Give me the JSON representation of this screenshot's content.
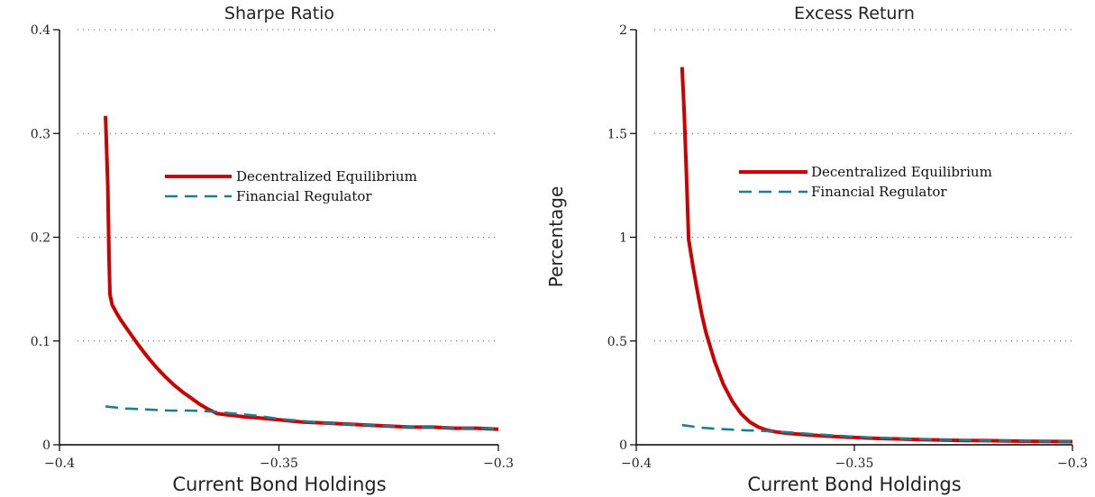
{
  "chart_data": [
    {
      "type": "line",
      "title": "Sharpe Ratio",
      "xlabel": "Current Bond Holdings",
      "ylabel": "",
      "xlim": [
        -0.4,
        -0.3
      ],
      "ylim": [
        0,
        0.4
      ],
      "xticks": [
        -0.4,
        -0.35,
        -0.3
      ],
      "xtick_labels": [
        "−0.4",
        "−0.35",
        "−0.3"
      ],
      "yticks": [
        0,
        0.1,
        0.2,
        0.3,
        0.4
      ],
      "ytick_labels": [
        "0",
        "0.1",
        "0.2",
        "0.3",
        "0.4"
      ],
      "grid": "horizontal dotted",
      "legend_position": "right",
      "series": [
        {
          "name": "Decentralized Equilibrium",
          "style": "solid",
          "color": "#cc0000",
          "x": [
            -0.3895,
            -0.389,
            -0.3887,
            -0.3885,
            -0.388,
            -0.387,
            -0.386,
            -0.384,
            -0.382,
            -0.38,
            -0.378,
            -0.376,
            -0.374,
            -0.372,
            -0.37,
            -0.368,
            -0.366,
            -0.364,
            -0.362,
            -0.36,
            -0.358,
            -0.355,
            -0.35,
            -0.345,
            -0.34,
            -0.335,
            -0.33,
            -0.325,
            -0.32,
            -0.315,
            -0.31,
            -0.305,
            -0.3
          ],
          "y": [
            0.317,
            0.25,
            0.18,
            0.145,
            0.135,
            0.127,
            0.12,
            0.108,
            0.096,
            0.085,
            0.075,
            0.066,
            0.058,
            0.051,
            0.045,
            0.039,
            0.034,
            0.03,
            0.029,
            0.028,
            0.027,
            0.026,
            0.024,
            0.022,
            0.021,
            0.02,
            0.019,
            0.018,
            0.017,
            0.017,
            0.016,
            0.016,
            0.015
          ]
        },
        {
          "name": "Financial Regulator",
          "style": "dashed",
          "color": "#1a7f8f",
          "x": [
            -0.3895,
            -0.385,
            -0.38,
            -0.375,
            -0.37,
            -0.365,
            -0.36,
            -0.355,
            -0.35,
            -0.345,
            -0.34,
            -0.335,
            -0.33,
            -0.325,
            -0.32,
            -0.315,
            -0.31,
            -0.305,
            -0.3
          ],
          "y": [
            0.037,
            0.035,
            0.034,
            0.033,
            0.033,
            0.032,
            0.03,
            0.028,
            0.025,
            0.023,
            0.021,
            0.02,
            0.019,
            0.018,
            0.017,
            0.017,
            0.016,
            0.016,
            0.015
          ]
        }
      ]
    },
    {
      "type": "line",
      "title": "Excess Return",
      "xlabel": "Current Bond Holdings",
      "ylabel": "Percentage",
      "xlim": [
        -0.4,
        -0.3
      ],
      "ylim": [
        0,
        2
      ],
      "xticks": [
        -0.4,
        -0.35,
        -0.3
      ],
      "xtick_labels": [
        "−0.4",
        "−0.35",
        "−0.3"
      ],
      "yticks": [
        0,
        0.5,
        1,
        1.5,
        2
      ],
      "ytick_labels": [
        "0",
        "0.5",
        "1",
        "1.5",
        "2"
      ],
      "grid": "horizontal dotted",
      "legend_position": "right",
      "series": [
        {
          "name": "Decentralized Equilibrium",
          "style": "solid",
          "color": "#cc0000",
          "x": [
            -0.3895,
            -0.389,
            -0.3885,
            -0.388,
            -0.387,
            -0.386,
            -0.385,
            -0.384,
            -0.382,
            -0.38,
            -0.378,
            -0.376,
            -0.374,
            -0.372,
            -0.37,
            -0.368,
            -0.366,
            -0.364,
            -0.362,
            -0.36,
            -0.355,
            -0.35,
            -0.345,
            -0.34,
            -0.335,
            -0.33,
            -0.325,
            -0.32,
            -0.31,
            -0.3
          ],
          "y": [
            1.82,
            1.6,
            1.3,
            0.99,
            0.86,
            0.74,
            0.63,
            0.54,
            0.4,
            0.29,
            0.21,
            0.15,
            0.11,
            0.085,
            0.07,
            0.062,
            0.057,
            0.053,
            0.05,
            0.047,
            0.04,
            0.035,
            0.031,
            0.028,
            0.025,
            0.023,
            0.021,
            0.02,
            0.017,
            0.015
          ]
        },
        {
          "name": "Financial Regulator",
          "style": "dashed",
          "color": "#1a7f8f",
          "x": [
            -0.3895,
            -0.385,
            -0.38,
            -0.375,
            -0.37,
            -0.365,
            -0.36,
            -0.355,
            -0.35,
            -0.345,
            -0.34,
            -0.335,
            -0.33,
            -0.325,
            -0.32,
            -0.315,
            -0.31,
            -0.305,
            -0.3
          ],
          "y": [
            0.095,
            0.082,
            0.075,
            0.07,
            0.066,
            0.06,
            0.052,
            0.045,
            0.039,
            0.034,
            0.03,
            0.027,
            0.024,
            0.022,
            0.02,
            0.019,
            0.018,
            0.016,
            0.015
          ]
        }
      ]
    }
  ]
}
